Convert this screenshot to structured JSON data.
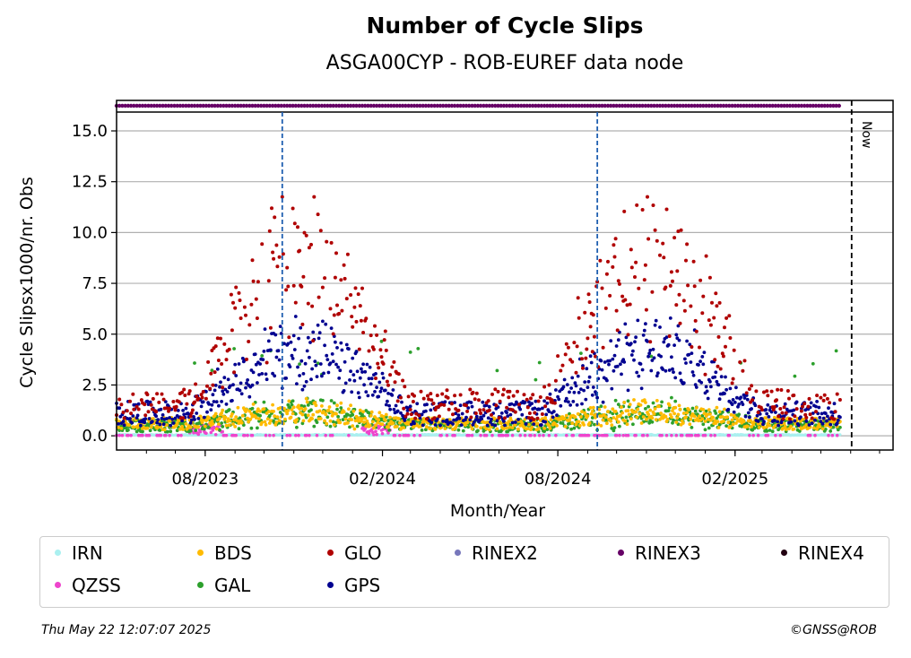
{
  "chart_data": {
    "type": "scatter",
    "title": "Number of Cycle Slips",
    "subtitle": "ASGA00CYP - ROB-EUREF data node",
    "xlabel": "Month/Year",
    "ylabel": "Cycle Slipsx1000/nr. Obs",
    "x_range": [
      "2023-05-01",
      "2025-07-15"
    ],
    "ylim": [
      -0.7,
      16.5
    ],
    "y_ticks": [
      0.0,
      2.5,
      5.0,
      7.5,
      10.0,
      12.5,
      15.0
    ],
    "y_tick_labels": [
      "0.0",
      "2.5",
      "5.0",
      "7.5",
      "10.0",
      "12.5",
      "15.0"
    ],
    "x_ticks": [
      {
        "date": "2023-08-01",
        "label": "08/2023"
      },
      {
        "date": "2024-02-01",
        "label": "02/2024"
      },
      {
        "date": "2024-08-01",
        "label": "08/2024"
      },
      {
        "date": "2025-02-01",
        "label": "02/2025"
      }
    ],
    "grid": "horizontal",
    "now_marker": {
      "date": "2025-06-02",
      "label": "Now"
    },
    "vertical_markers": [
      "2023-10-20",
      "2024-09-11"
    ],
    "data_start": "2023-05-01",
    "data_end": "2025-05-21",
    "rinex3_level": 16.4,
    "legend_placement": "bottom",
    "series": [
      {
        "name": "IRN",
        "color": "#aaf0f0",
        "baseline": 0.0,
        "amplitude": 0.05
      },
      {
        "name": "QZSS",
        "color": "#ee44cc",
        "baseline": 0.0,
        "amplitude": 0.05
      },
      {
        "name": "BDS",
        "color": "#ffbb00",
        "baseline": 0.5,
        "amplitude": 0.6
      },
      {
        "name": "GAL",
        "color": "#2ca02c",
        "baseline": 0.3,
        "amplitude": 0.8
      },
      {
        "name": "GLO",
        "color": "#b00000",
        "baseline": 1.5,
        "amplitude": 7.0
      },
      {
        "name": "GPS",
        "color": "#000090",
        "baseline": 0.8,
        "amplitude": 3.0
      },
      {
        "name": "RINEX2",
        "color": "#7777bb",
        "baseline": null,
        "amplitude": 0
      },
      {
        "name": "RINEX3",
        "color": "#660066",
        "baseline": 16.4,
        "amplitude": 0
      },
      {
        "name": "RINEX4",
        "color": "#220011",
        "baseline": null,
        "amplitude": 0
      }
    ]
  },
  "legend": {
    "items": [
      {
        "label": "IRN",
        "color": "#aaf0f0"
      },
      {
        "label": "BDS",
        "color": "#ffbb00"
      },
      {
        "label": "GLO",
        "color": "#b00000"
      },
      {
        "label": "RINEX2",
        "color": "#7777bb"
      },
      {
        "label": "RINEX3",
        "color": "#660066"
      },
      {
        "label": "RINEX4",
        "color": "#220011"
      },
      {
        "label": "QZSS",
        "color": "#ee44cc"
      },
      {
        "label": "GAL",
        "color": "#2ca02c"
      },
      {
        "label": "GPS",
        "color": "#000090"
      }
    ]
  },
  "footer": {
    "timestamp": "Thu May 22 12:07:07 2025",
    "copyright": "©GNSS@ROB"
  }
}
